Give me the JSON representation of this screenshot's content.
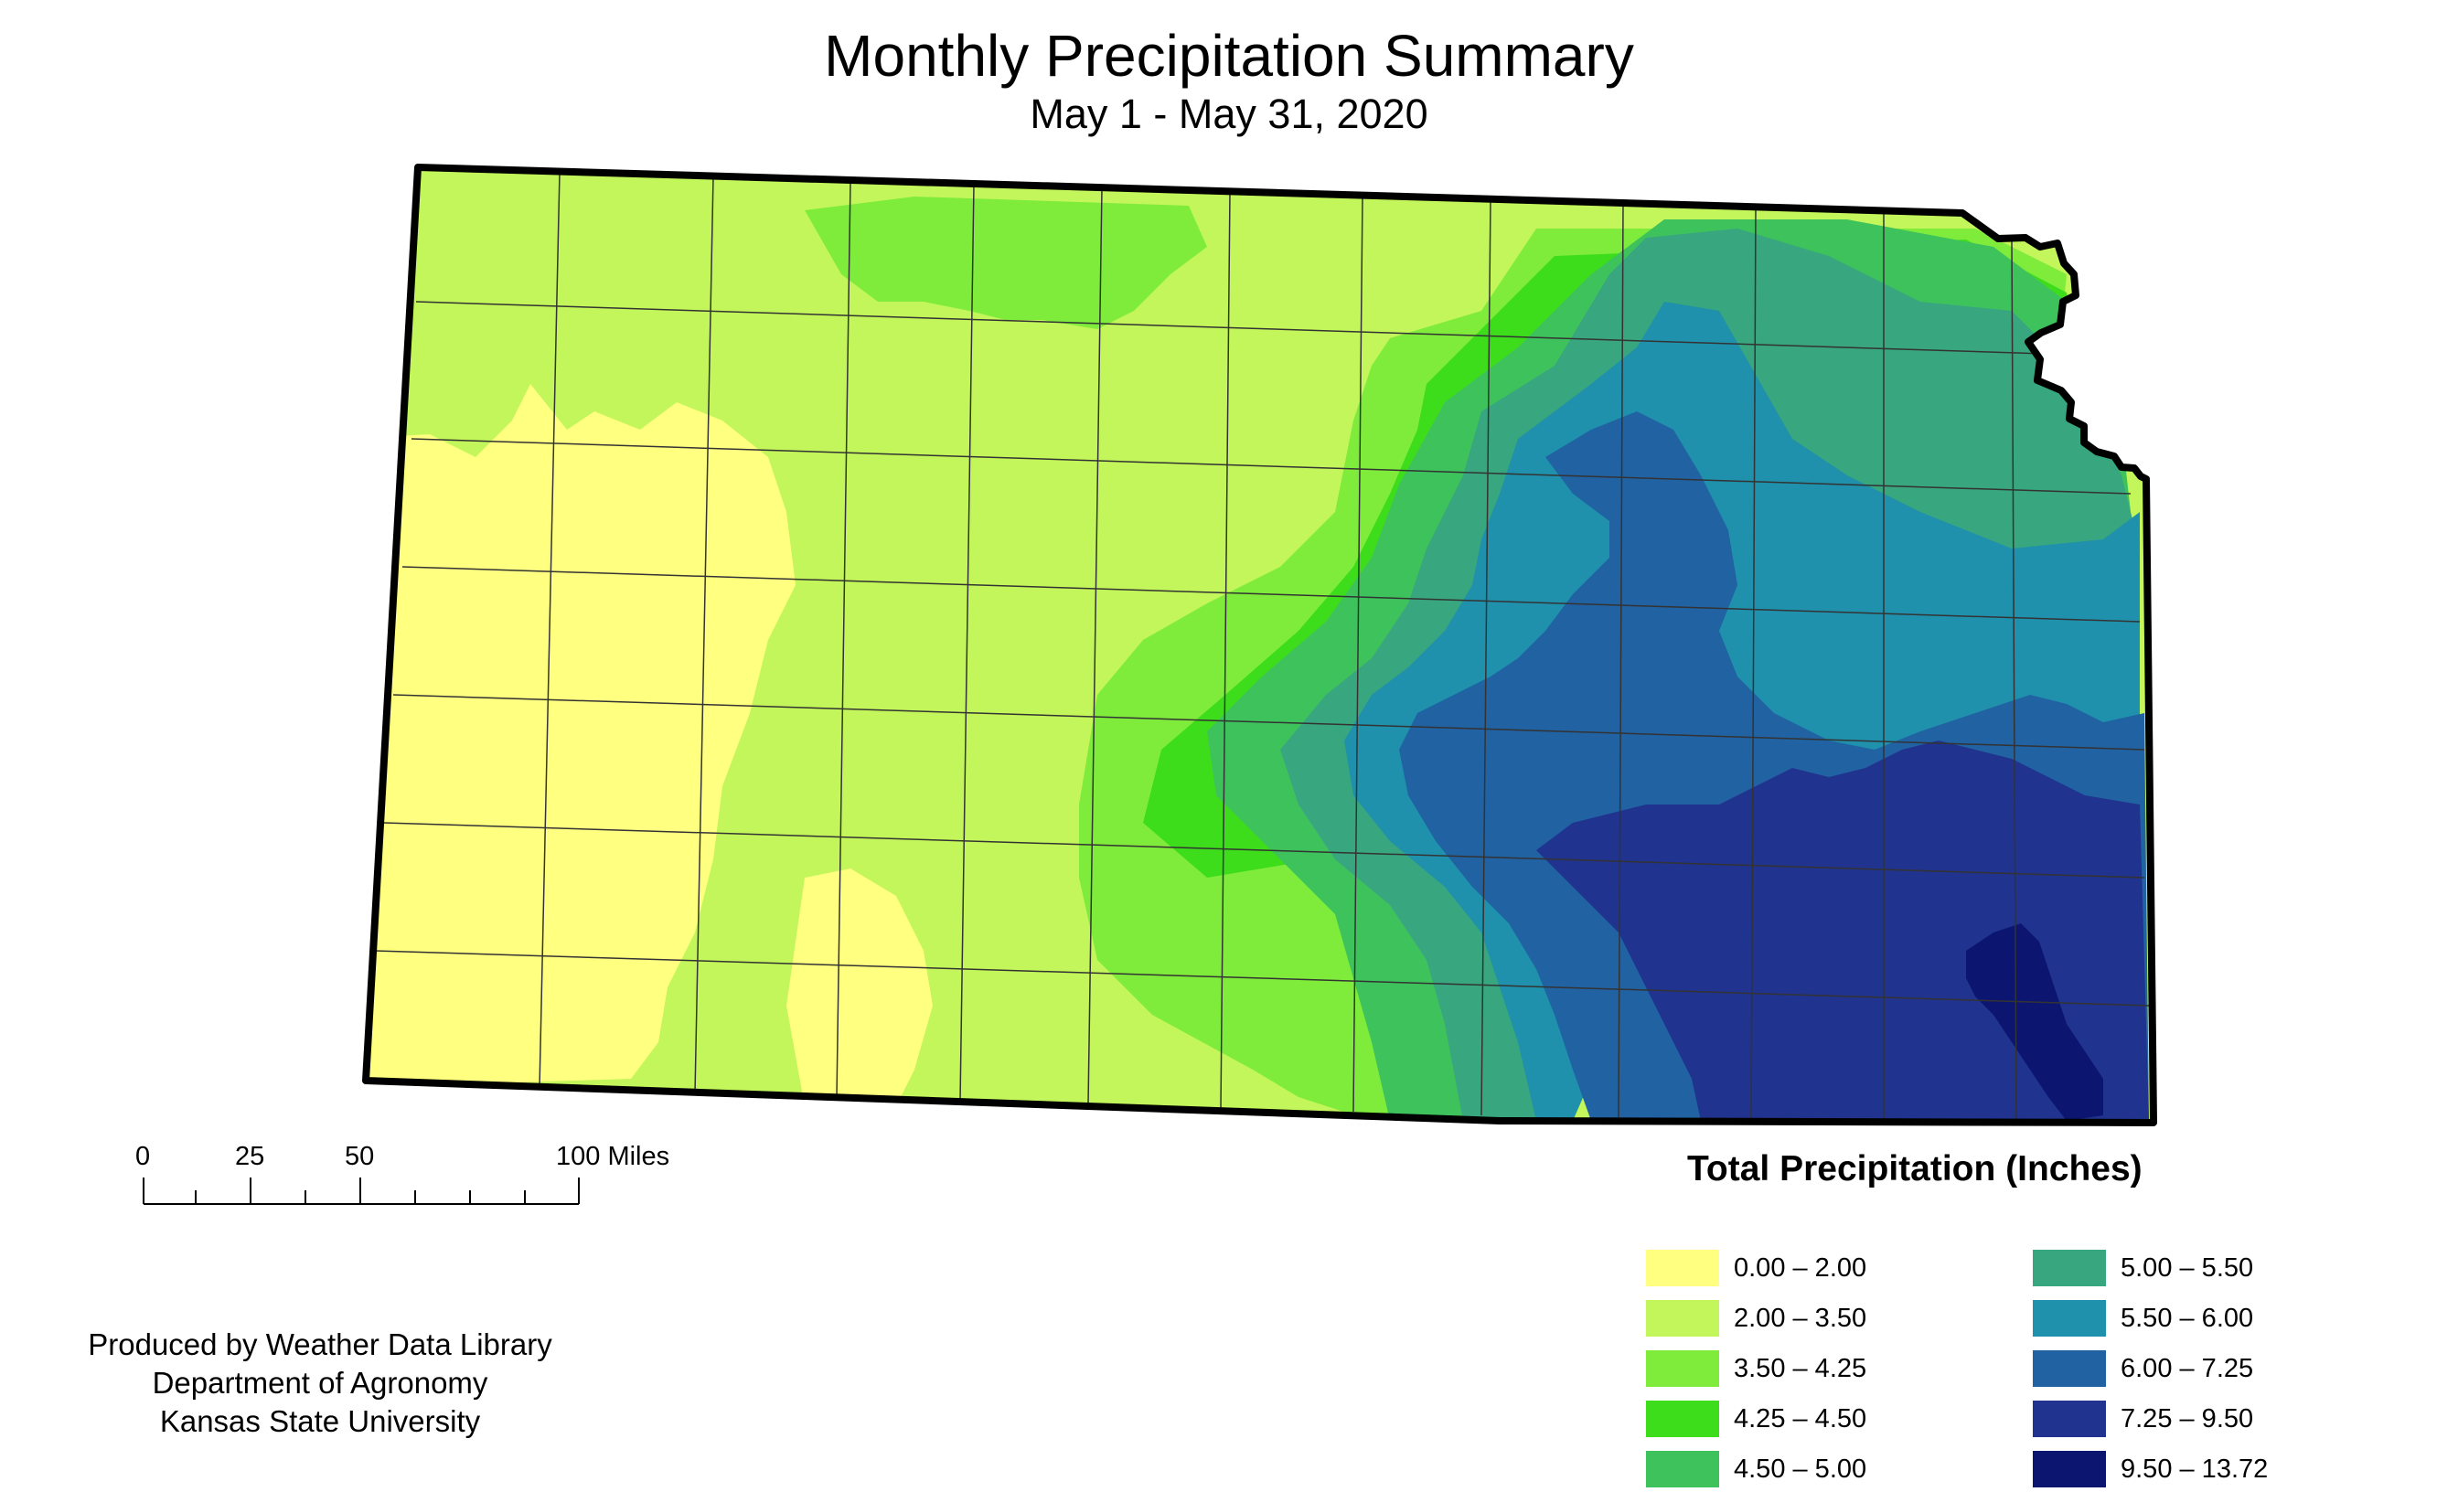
{
  "title": "Monthly Precipitation Summary",
  "subtitle": "May 1 - May 31, 2020",
  "scale_bar": {
    "ticks": [
      "0",
      "25",
      "50",
      "100 Miles"
    ]
  },
  "credits": [
    "Produced by Weather Data Library",
    "Department of Agronomy",
    "Kansas State University"
  ],
  "legend": {
    "title": "Total Precipitation (Inches)",
    "items": [
      {
        "label": "0.00 – 2.00",
        "color": "#ffff80"
      },
      {
        "label": "2.00 – 3.50",
        "color": "#c3f65a"
      },
      {
        "label": "3.50 – 4.25",
        "color": "#7fec3c"
      },
      {
        "label": "4.25 – 4.50",
        "color": "#3ddd1c"
      },
      {
        "label": "4.50 – 5.00",
        "color": "#3ec35c"
      },
      {
        "label": "5.00 – 5.50",
        "color": "#38a67f"
      },
      {
        "label": "5.50 – 6.00",
        "color": "#1f91ac"
      },
      {
        "label": "6.00 – 7.25",
        "color": "#2162a2"
      },
      {
        "label": "7.25 – 9.50",
        "color": "#20338e"
      },
      {
        "label": "9.50 – 13.72",
        "color": "#0c1670"
      }
    ]
  },
  "colors": {
    "border": "#000000",
    "county_lines": "#333333",
    "background": "#ffffff"
  }
}
